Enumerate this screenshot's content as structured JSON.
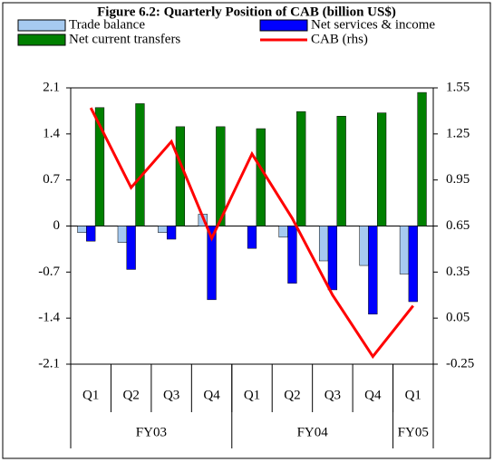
{
  "chart_data": {
    "type": "bar",
    "title": "Figure 6.2: Quarterly Position of CAB (billion US$)",
    "categories": [
      "Q1",
      "Q2",
      "Q3",
      "Q4",
      "Q1",
      "Q2",
      "Q3",
      "Q4",
      "Q1"
    ],
    "groups": [
      {
        "label": "FY03",
        "span": 4
      },
      {
        "label": "FY04",
        "span": 4
      },
      {
        "label": "FY05",
        "span": 1
      }
    ],
    "series": [
      {
        "name": "Trade balance",
        "color": "#a6caf0",
        "values": [
          -0.1,
          -0.25,
          -0.1,
          0.18,
          0,
          -0.17,
          -0.53,
          -0.6,
          -0.73
        ]
      },
      {
        "name": "Net services & income",
        "color": "#0000ff",
        "values": [
          -0.23,
          -0.66,
          -0.2,
          -1.12,
          -0.34,
          -0.87,
          -0.97,
          -1.34,
          -1.15
        ]
      },
      {
        "name": "Net current transfers",
        "color": "#008000",
        "values": [
          1.8,
          1.86,
          1.51,
          1.51,
          1.48,
          1.74,
          1.67,
          1.72,
          2.03
        ]
      },
      {
        "name": "CAB (rhs)",
        "color": "#ff0000",
        "type": "line",
        "axis": "y2",
        "values": [
          1.42,
          0.9,
          1.2,
          0.57,
          1.12,
          0.7,
          0.2,
          -0.2,
          0.13
        ]
      }
    ],
    "ylim": [
      -2.1,
      2.1
    ],
    "yticks": [
      -2.1,
      -1.4,
      -0.7,
      0,
      0.7,
      1.4,
      2.1
    ],
    "y2lim": [
      -0.25,
      1.55
    ],
    "y2ticks": [
      -0.25,
      0.05,
      0.35,
      0.65,
      0.95,
      1.25,
      1.55
    ]
  }
}
